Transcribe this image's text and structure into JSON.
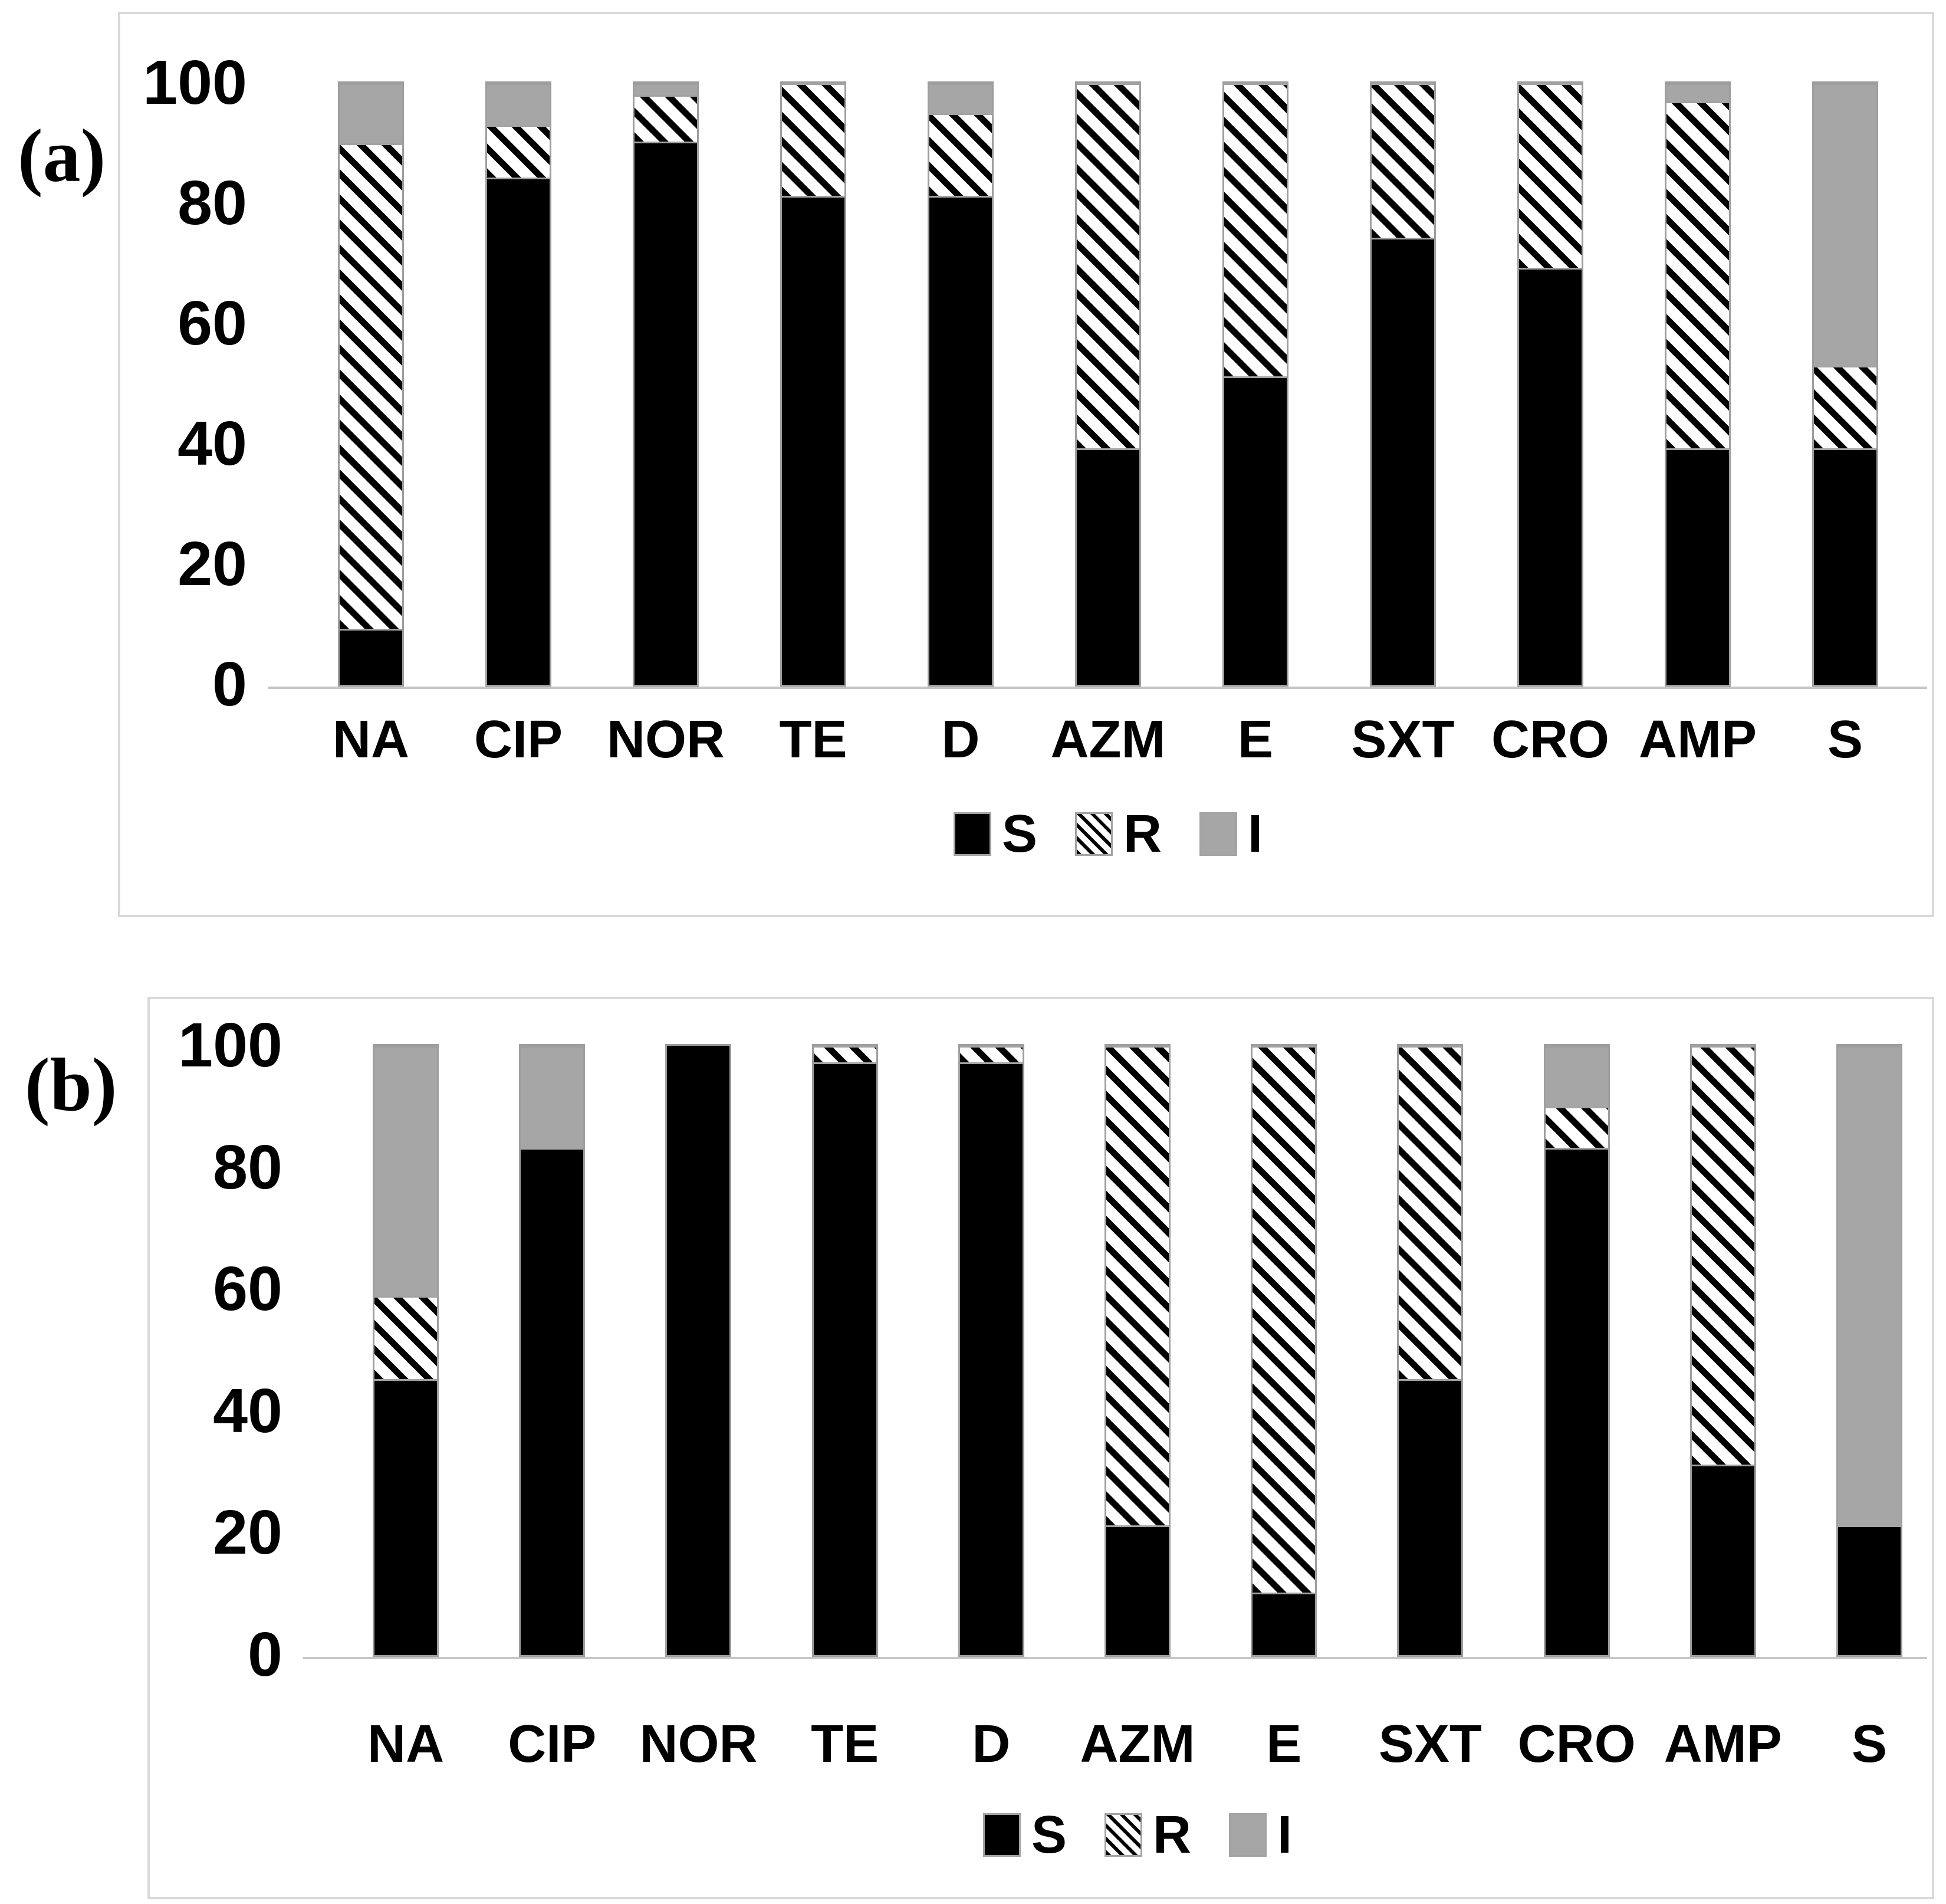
{
  "figure": {
    "panel_a_label": "(a)",
    "panel_b_label": "(b)"
  },
  "colors": {
    "susceptible_fill": "#000000",
    "resistant_stripe": "#000000",
    "resistant_bg": "#ffffff",
    "intermediate_fill": "#a6a6a6",
    "panel_border": "#d9d9d9",
    "axis_line": "#c6c6c6",
    "swatch_border": "#a3a3a3",
    "text": "#000000"
  },
  "chart_data": [
    {
      "type": "bar",
      "stacked": true,
      "panel": "a",
      "panel_label": "(a)",
      "title": "",
      "xlabel": "",
      "ylabel": "",
      "ylim": [
        0,
        100
      ],
      "y_ticks": [
        100,
        80,
        60,
        40,
        20,
        0
      ],
      "grid": false,
      "legend_position": "bottom-center",
      "legend_entries": [
        "S",
        "R",
        "I"
      ],
      "categories": [
        "NA",
        "CIP",
        "NOR",
        "TE",
        "D",
        "AZM",
        "E",
        "SXT",
        "CRO",
        "AMP",
        "S"
      ],
      "series": [
        {
          "name": "S",
          "style": "solid-black",
          "values": [
            9,
            84,
            90,
            81,
            81,
            39,
            51,
            74,
            69,
            39,
            39
          ]
        },
        {
          "name": "R",
          "style": "diagonal-hatch",
          "values": [
            81,
            9,
            8,
            19,
            14,
            61,
            49,
            26,
            31,
            58,
            14
          ]
        },
        {
          "name": "I",
          "style": "solid-gray",
          "values": [
            10,
            7,
            2,
            0,
            5,
            0,
            0,
            0,
            0,
            3,
            47
          ]
        }
      ]
    },
    {
      "type": "bar",
      "stacked": true,
      "panel": "b",
      "panel_label": "(b)",
      "title": "",
      "xlabel": "",
      "ylabel": "",
      "ylim": [
        0,
        100
      ],
      "y_ticks": [
        100,
        80,
        60,
        40,
        20,
        0
      ],
      "grid": false,
      "legend_position": "bottom-center",
      "legend_entries": [
        "S",
        "R",
        "I"
      ],
      "categories": [
        "NA",
        "CIP",
        "NOR",
        "TE",
        "D",
        "AZM",
        "E",
        "SXT",
        "CRO",
        "AMP",
        "S"
      ],
      "series": [
        {
          "name": "S",
          "style": "solid-black",
          "values": [
            45,
            83,
            100,
            97,
            97,
            21,
            10,
            45,
            83,
            31,
            21
          ]
        },
        {
          "name": "R",
          "style": "diagonal-hatch",
          "values": [
            14,
            0,
            0,
            3,
            3,
            79,
            90,
            55,
            7,
            69,
            0
          ]
        },
        {
          "name": "I",
          "style": "solid-gray",
          "values": [
            41,
            17,
            0,
            0,
            0,
            0,
            0,
            0,
            10,
            0,
            79
          ]
        }
      ]
    }
  ]
}
